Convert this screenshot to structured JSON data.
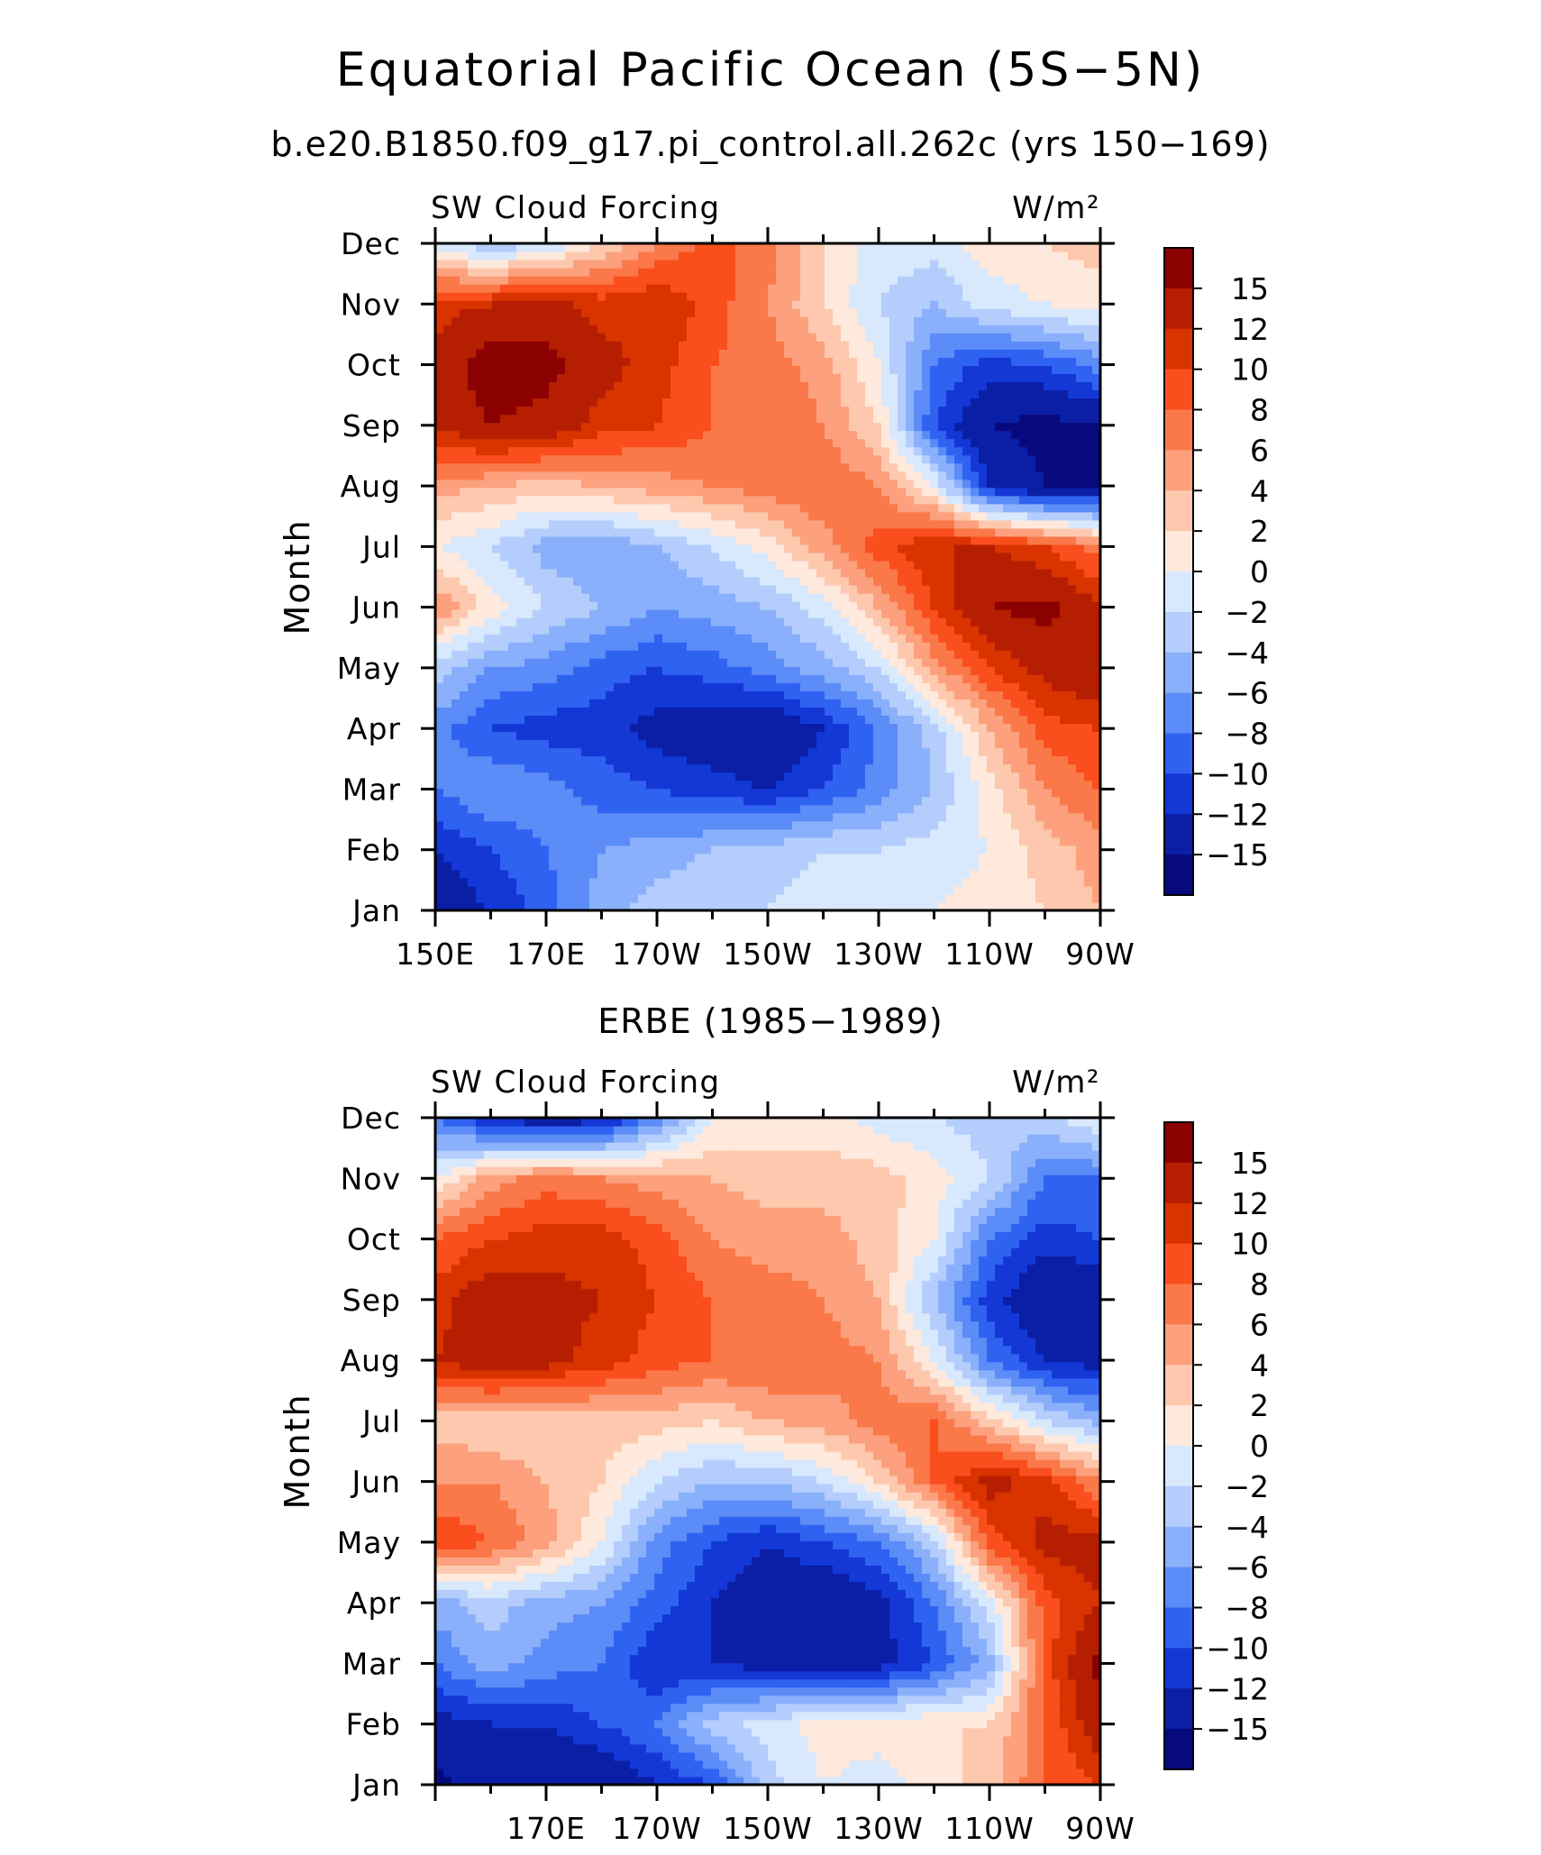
{
  "figure": {
    "title": "Equatorial Pacific Ocean (5S−5N)",
    "subtitle": "b.e20.B1850.f09_g17.pi_control.all.262c (yrs 150−169)",
    "panel2_title": "ERBE (1985−1989)"
  },
  "panels": [
    {
      "left_label": "SW Cloud Forcing",
      "right_label": "W/m²",
      "ylabel": "Month",
      "xticks": [
        "150E",
        "170E",
        "170W",
        "150W",
        "130W",
        "110W",
        "90W"
      ]
    },
    {
      "left_label": "SW Cloud Forcing",
      "right_label": "W/m²",
      "ylabel": "Month",
      "xticks": [
        "",
        "170E",
        "170W",
        "150W",
        "130W",
        "110W",
        "90W"
      ]
    }
  ],
  "months": [
    "Jan",
    "Feb",
    "Mar",
    "Apr",
    "May",
    "Jun",
    "Jul",
    "Aug",
    "Sep",
    "Oct",
    "Nov",
    "Dec"
  ],
  "colorbar": {
    "labels": [
      "15",
      "12",
      "10",
      "8",
      "6",
      "4",
      "2",
      "0",
      "−2",
      "−4",
      "−6",
      "−8",
      "−10",
      "−12",
      "−15"
    ],
    "colors": [
      "#8b0000",
      "#b51e00",
      "#d93300",
      "#fa4e1c",
      "#fa7849",
      "#fca07d",
      "#fdc8ae",
      "#fee9dc",
      "#d8e8fd",
      "#b4cdfc",
      "#8bb0fb",
      "#5b8cf7",
      "#2f62f0",
      "#1338d6",
      "#0a1ea6",
      "#060a7d"
    ]
  },
  "chart_data": [
    {
      "type": "heatmap",
      "title": "b.e20.B1850.f09_g17.pi_control.all.262c (yrs 150−169)",
      "ylabel": "Month",
      "xlim": [
        "150E",
        "90W"
      ],
      "ylim": [
        "Jan",
        "Dec"
      ],
      "units": "W/m²",
      "x_longitude": [
        "150E",
        "160E",
        "170E",
        "180",
        "170W",
        "160W",
        "150W",
        "140W",
        "130W",
        "120W",
        "110W",
        "100W",
        "90W"
      ],
      "y_month": [
        "Jan",
        "Feb",
        "Mar",
        "Apr",
        "May",
        "Jun",
        "Jul",
        "Aug",
        "Sep",
        "Oct",
        "Nov",
        "Dec"
      ],
      "z": [
        [
          -14,
          -12,
          -9,
          -5,
          -3,
          -2,
          -2,
          -1,
          -2,
          0,
          1,
          2,
          4
        ],
        [
          -12,
          -10,
          -8,
          -6,
          -5,
          -4,
          -3,
          -2,
          -2,
          -1,
          0,
          3,
          5
        ],
        [
          -8,
          -6,
          -7,
          -9,
          -10,
          -11,
          -12,
          -10,
          -7,
          -4,
          1,
          6,
          8
        ],
        [
          -7,
          -10,
          -11,
          -11,
          -13,
          -14,
          -15,
          -12,
          -8,
          -3,
          4,
          9,
          10
        ],
        [
          -3,
          -6,
          -7,
          -9,
          -10,
          -9,
          -7,
          -5,
          -2,
          5,
          10,
          13,
          15
        ],
        [
          6,
          1,
          -2,
          -4,
          -6,
          -5,
          -4,
          -1,
          4,
          10,
          15,
          16,
          12
        ],
        [
          0,
          -2,
          -5,
          -6,
          -4,
          -2,
          1,
          5,
          9,
          12,
          12,
          10,
          7
        ],
        [
          5,
          4,
          3,
          4,
          5,
          6,
          7,
          8,
          6,
          0,
          -12,
          -15,
          -15
        ],
        [
          12,
          15,
          14,
          11,
          10,
          8,
          8,
          6,
          2,
          -10,
          -15,
          -16,
          -15
        ],
        [
          13,
          17,
          16,
          13,
          11,
          8,
          7,
          5,
          0,
          -8,
          -11,
          -10,
          -7
        ],
        [
          11,
          12,
          13,
          11,
          12,
          9,
          6,
          2,
          -2,
          -4,
          -1,
          0,
          1
        ],
        [
          -1,
          -4,
          -2,
          2,
          6,
          9,
          7,
          2,
          -1,
          -1,
          1,
          2,
          3
        ]
      ]
    },
    {
      "type": "heatmap",
      "title": "ERBE (1985−1989)",
      "ylabel": "Month",
      "xlim": [
        "150E",
        "90W"
      ],
      "ylim": [
        "Jan",
        "Dec"
      ],
      "units": "W/m²",
      "x_longitude": [
        "150E",
        "160E",
        "170E",
        "180",
        "170W",
        "160W",
        "150W",
        "140W",
        "130W",
        "120W",
        "110W",
        "100W",
        "90W"
      ],
      "y_month": [
        "Jan",
        "Feb",
        "Mar",
        "Apr",
        "May",
        "Jun",
        "Jul",
        "Aug",
        "Sep",
        "Oct",
        "Nov",
        "Dec"
      ],
      "z": [
        [
          -16,
          -13,
          -14,
          -15,
          -12,
          -10,
          -3,
          0,
          -1,
          1,
          3,
          8,
          10
        ],
        [
          -13,
          -12,
          -12,
          -10,
          -8,
          -3,
          -1,
          1,
          1,
          2,
          2,
          8,
          14
        ],
        [
          -8,
          -5,
          -7,
          -8,
          -12,
          -12,
          -13,
          -13,
          -13,
          -10,
          -5,
          9,
          16
        ],
        [
          -5,
          -3,
          -5,
          -6,
          -9,
          -12,
          -14,
          -15,
          -13,
          -8,
          -1,
          9,
          12
        ],
        [
          10,
          8,
          5,
          0,
          -7,
          -10,
          -12,
          -10,
          -8,
          -3,
          9,
          13,
          13
        ],
        [
          6,
          6,
          4,
          2,
          -2,
          -4,
          -4,
          -2,
          2,
          8,
          13,
          11,
          6
        ],
        [
          3,
          2,
          2,
          3,
          3,
          2,
          4,
          5,
          7,
          8,
          3,
          -2,
          -5
        ],
        [
          12,
          14,
          13,
          11,
          9,
          8,
          8,
          7,
          6,
          0,
          -8,
          -12,
          -13
        ],
        [
          11,
          14,
          13,
          12,
          10,
          8,
          7,
          6,
          4,
          -4,
          -11,
          -15,
          -15
        ],
        [
          8,
          10,
          11,
          11,
          9,
          6,
          5,
          5,
          3,
          0,
          -8,
          -11,
          -10
        ],
        [
          0,
          5,
          7,
          6,
          5,
          4,
          3,
          3,
          3,
          1,
          -2,
          -8,
          -8
        ],
        [
          -8,
          -12,
          -14,
          -13,
          -7,
          0,
          1,
          1,
          -1,
          -2,
          -3,
          -3,
          0
        ]
      ]
    }
  ]
}
